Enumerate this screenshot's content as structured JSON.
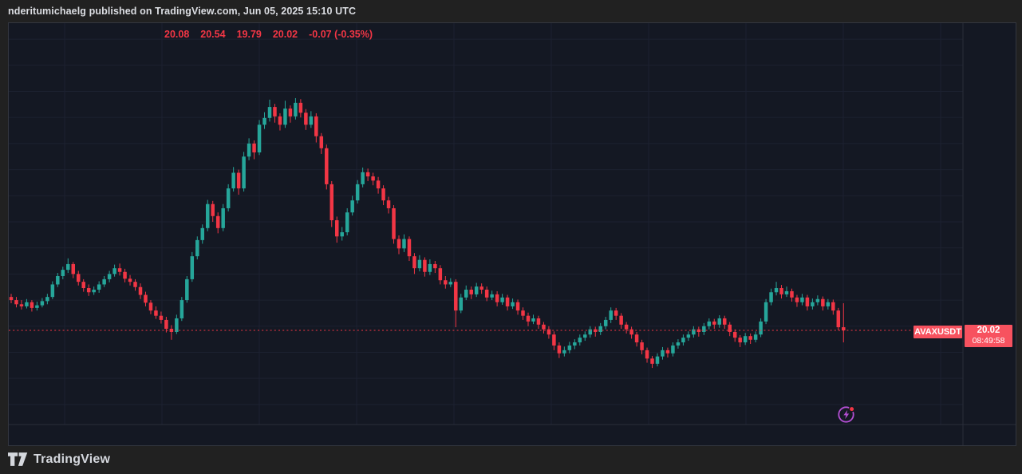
{
  "header": {
    "published_line": "nderitumichaelg published on TradingView.com, Jun 05, 2025 15:10 UTC"
  },
  "legend": {
    "open": "20.08",
    "high": "20.54",
    "low": "19.79",
    "close": "20.02",
    "change": "-0.07 (-0.35%)"
  },
  "price_label": {
    "symbol": "AVAXUSDT",
    "price": "20.02",
    "countdown": "08:49:58"
  },
  "footer": {
    "brand": "TradingView"
  },
  "icons": {
    "flash_icon": "circled-lightning-with-red-notification-dot",
    "tradingview_logo": "tv-mark"
  },
  "colors": {
    "background": "#212121",
    "panel_bg": "#141823",
    "grid": "#1c2130",
    "separator": "#2a2e39",
    "up": "#26a69a",
    "down": "#f23645",
    "label_bg": "#f7525f",
    "legend_text": "#f23645",
    "text_primary": "#dcdee3",
    "flash_purple": "#b44fd4"
  },
  "chart_data": {
    "type": "candlestick",
    "symbol": "AVAXUSDT",
    "last_price": 20.02,
    "change": -0.07,
    "change_pct": -0.35,
    "ohlc_last": {
      "open": 20.08,
      "high": 20.54,
      "low": 19.79,
      "close": 20.02
    },
    "countdown_to_bar_close": "08:49:58",
    "y_axis": {
      "min": 18.4,
      "max": 26.1,
      "gridline_step": 0.5,
      "labels_hidden": true
    },
    "x_axis": {
      "labels_hidden": true
    },
    "up_color": "#26a69a",
    "down_color": "#f23645",
    "price_line_color": "#f23645",
    "grid_color": "#1c2130",
    "candles": [
      [
        20.66,
        20.72,
        20.54,
        20.6
      ],
      [
        20.6,
        20.66,
        20.46,
        20.52
      ],
      [
        20.52,
        20.6,
        20.42,
        20.48
      ],
      [
        20.48,
        20.62,
        20.44,
        20.56
      ],
      [
        20.56,
        20.6,
        20.38,
        20.45
      ],
      [
        20.45,
        20.57,
        20.4,
        20.5
      ],
      [
        20.5,
        20.64,
        20.46,
        20.58
      ],
      [
        20.58,
        20.72,
        20.52,
        20.66
      ],
      [
        20.66,
        20.96,
        20.62,
        20.9
      ],
      [
        20.9,
        21.12,
        20.85,
        21.06
      ],
      [
        21.06,
        21.24,
        21.0,
        21.18
      ],
      [
        21.18,
        21.4,
        21.12,
        21.29
      ],
      [
        21.29,
        21.33,
        21.02,
        21.1
      ],
      [
        21.1,
        21.16,
        20.88,
        20.95
      ],
      [
        20.95,
        21.0,
        20.76,
        20.83
      ],
      [
        20.83,
        20.9,
        20.68,
        20.75
      ],
      [
        20.75,
        20.86,
        20.7,
        20.8
      ],
      [
        20.8,
        20.96,
        20.74,
        20.9
      ],
      [
        20.9,
        21.06,
        20.85,
        21.0
      ],
      [
        21.0,
        21.16,
        20.94,
        21.1
      ],
      [
        21.1,
        21.28,
        21.05,
        21.21
      ],
      [
        21.21,
        21.3,
        21.07,
        21.14
      ],
      [
        21.14,
        21.2,
        20.94,
        21.01
      ],
      [
        21.01,
        21.08,
        20.88,
        20.95
      ],
      [
        20.95,
        21.0,
        20.78,
        20.85
      ],
      [
        20.85,
        20.92,
        20.62,
        20.7
      ],
      [
        20.7,
        20.76,
        20.48,
        20.55
      ],
      [
        20.55,
        20.6,
        20.33,
        20.4
      ],
      [
        20.4,
        20.48,
        20.24,
        20.3
      ],
      [
        20.3,
        20.38,
        20.15,
        20.22
      ],
      [
        20.22,
        20.28,
        19.98,
        20.05
      ],
      [
        20.05,
        20.12,
        19.84,
        19.99
      ],
      [
        19.99,
        20.32,
        19.95,
        20.25
      ],
      [
        20.25,
        20.66,
        20.2,
        20.6
      ],
      [
        20.6,
        21.06,
        20.55,
        21.0
      ],
      [
        21.0,
        21.52,
        20.95,
        21.44
      ],
      [
        21.44,
        21.82,
        21.38,
        21.75
      ],
      [
        21.75,
        22.05,
        21.68,
        21.98
      ],
      [
        21.98,
        22.52,
        21.92,
        22.44
      ],
      [
        22.44,
        22.5,
        22.1,
        22.21
      ],
      [
        22.21,
        22.28,
        21.88,
        21.98
      ],
      [
        21.98,
        22.44,
        21.92,
        22.36
      ],
      [
        22.36,
        22.82,
        22.3,
        22.74
      ],
      [
        22.74,
        23.15,
        22.68,
        23.04
      ],
      [
        23.04,
        23.1,
        22.62,
        22.74
      ],
      [
        22.74,
        23.44,
        22.68,
        23.35
      ],
      [
        23.35,
        23.7,
        23.28,
        23.6
      ],
      [
        23.6,
        23.66,
        23.3,
        23.43
      ],
      [
        23.43,
        24.05,
        23.38,
        23.96
      ],
      [
        23.96,
        24.2,
        23.88,
        24.09
      ],
      [
        24.09,
        24.44,
        24.02,
        24.3
      ],
      [
        24.3,
        24.36,
        24.0,
        24.12
      ],
      [
        24.12,
        24.18,
        23.85,
        23.96
      ],
      [
        23.96,
        24.42,
        23.9,
        24.27
      ],
      [
        24.27,
        24.33,
        24.0,
        24.12
      ],
      [
        24.12,
        24.47,
        24.06,
        24.38
      ],
      [
        24.38,
        24.45,
        24.1,
        24.19
      ],
      [
        24.19,
        24.26,
        23.86,
        23.96
      ],
      [
        23.96,
        24.22,
        23.9,
        24.12
      ],
      [
        24.12,
        24.18,
        23.62,
        23.74
      ],
      [
        23.74,
        23.8,
        23.4,
        23.51
      ],
      [
        23.51,
        23.58,
        22.72,
        22.82
      ],
      [
        22.82,
        22.88,
        22.0,
        22.13
      ],
      [
        22.13,
        22.2,
        21.7,
        21.82
      ],
      [
        21.82,
        22.0,
        21.74,
        21.9
      ],
      [
        21.9,
        22.36,
        21.84,
        22.28
      ],
      [
        22.28,
        22.6,
        22.22,
        22.51
      ],
      [
        22.51,
        22.9,
        22.45,
        22.82
      ],
      [
        22.82,
        23.14,
        22.76,
        23.05
      ],
      [
        23.05,
        23.12,
        22.88,
        22.97
      ],
      [
        22.97,
        23.04,
        22.8,
        22.89
      ],
      [
        22.89,
        22.96,
        22.64,
        22.74
      ],
      [
        22.74,
        22.8,
        22.42,
        22.51
      ],
      [
        22.51,
        22.58,
        22.26,
        22.36
      ],
      [
        22.36,
        22.42,
        21.68,
        21.77
      ],
      [
        21.77,
        21.84,
        21.48,
        21.59
      ],
      [
        21.59,
        21.86,
        21.52,
        21.77
      ],
      [
        21.77,
        21.82,
        21.35,
        21.44
      ],
      [
        21.44,
        21.5,
        21.1,
        21.21
      ],
      [
        21.21,
        21.46,
        21.15,
        21.37
      ],
      [
        21.37,
        21.42,
        21.05,
        21.14
      ],
      [
        21.14,
        21.38,
        21.08,
        21.29
      ],
      [
        21.29,
        21.35,
        21.12,
        21.21
      ],
      [
        21.21,
        21.27,
        20.9,
        20.98
      ],
      [
        20.98,
        21.06,
        20.82,
        20.9
      ],
      [
        20.9,
        21.02,
        20.85,
        20.95
      ],
      [
        20.95,
        21.0,
        20.08,
        20.4
      ],
      [
        20.4,
        20.72,
        20.35,
        20.65
      ],
      [
        20.65,
        20.88,
        20.6,
        20.8
      ],
      [
        20.8,
        20.86,
        20.62,
        20.71
      ],
      [
        20.71,
        20.93,
        20.66,
        20.86
      ],
      [
        20.86,
        20.92,
        20.72,
        20.8
      ],
      [
        20.8,
        20.86,
        20.58,
        20.65
      ],
      [
        20.65,
        20.78,
        20.6,
        20.71
      ],
      [
        20.71,
        20.77,
        20.48,
        20.56
      ],
      [
        20.56,
        20.72,
        20.51,
        20.65
      ],
      [
        20.65,
        20.7,
        20.4,
        20.48
      ],
      [
        20.48,
        20.63,
        20.43,
        20.56
      ],
      [
        20.56,
        20.61,
        20.32,
        20.4
      ],
      [
        20.4,
        20.46,
        20.22,
        20.3
      ],
      [
        20.3,
        20.36,
        20.1,
        20.19
      ],
      [
        20.19,
        20.32,
        20.14,
        20.25
      ],
      [
        20.25,
        20.3,
        20.05,
        20.13
      ],
      [
        20.13,
        20.18,
        19.96,
        20.04
      ],
      [
        20.04,
        20.1,
        19.86,
        19.94
      ],
      [
        19.94,
        20.0,
        19.64,
        19.73
      ],
      [
        19.73,
        19.79,
        19.49,
        19.58
      ],
      [
        19.58,
        19.71,
        19.52,
        19.64
      ],
      [
        19.64,
        19.8,
        19.58,
        19.73
      ],
      [
        19.73,
        19.85,
        19.66,
        19.79
      ],
      [
        19.79,
        19.94,
        19.73,
        19.88
      ],
      [
        19.88,
        20.0,
        19.82,
        19.94
      ],
      [
        19.94,
        20.1,
        19.88,
        20.04
      ],
      [
        20.04,
        20.09,
        19.9,
        19.99
      ],
      [
        19.99,
        20.16,
        19.93,
        20.1
      ],
      [
        20.1,
        20.28,
        20.04,
        20.22
      ],
      [
        20.22,
        20.46,
        20.16,
        20.4
      ],
      [
        20.4,
        20.45,
        20.22,
        20.3
      ],
      [
        20.3,
        20.35,
        20.05,
        20.13
      ],
      [
        20.13,
        20.18,
        19.96,
        20.04
      ],
      [
        20.04,
        20.09,
        19.86,
        19.94
      ],
      [
        19.94,
        19.99,
        19.71,
        19.79
      ],
      [
        19.79,
        19.84,
        19.56,
        19.64
      ],
      [
        19.64,
        19.69,
        19.4,
        19.48
      ],
      [
        19.48,
        19.53,
        19.3,
        19.38
      ],
      [
        19.38,
        19.58,
        19.33,
        19.52
      ],
      [
        19.52,
        19.7,
        19.46,
        19.64
      ],
      [
        19.64,
        19.69,
        19.5,
        19.58
      ],
      [
        19.58,
        19.79,
        19.52,
        19.73
      ],
      [
        19.73,
        19.85,
        19.67,
        19.79
      ],
      [
        19.79,
        19.94,
        19.73,
        19.88
      ],
      [
        19.88,
        20.0,
        19.82,
        19.94
      ],
      [
        19.94,
        20.1,
        19.88,
        20.04
      ],
      [
        20.04,
        20.09,
        19.9,
        19.99
      ],
      [
        19.99,
        20.16,
        19.93,
        20.1
      ],
      [
        20.1,
        20.25,
        20.04,
        20.19
      ],
      [
        20.19,
        20.24,
        20.05,
        20.13
      ],
      [
        20.13,
        20.31,
        20.07,
        20.25
      ],
      [
        20.25,
        20.3,
        20.05,
        20.13
      ],
      [
        20.13,
        20.18,
        19.91,
        19.99
      ],
      [
        19.99,
        20.04,
        19.8,
        19.88
      ],
      [
        19.88,
        19.93,
        19.7,
        19.79
      ],
      [
        19.79,
        19.97,
        19.74,
        19.91
      ],
      [
        19.91,
        19.96,
        19.76,
        19.84
      ],
      [
        19.84,
        20.0,
        19.79,
        19.94
      ],
      [
        19.94,
        20.25,
        19.89,
        20.19
      ],
      [
        20.19,
        20.62,
        20.14,
        20.56
      ],
      [
        20.56,
        20.82,
        20.5,
        20.75
      ],
      [
        20.75,
        20.95,
        20.69,
        20.83
      ],
      [
        20.83,
        20.89,
        20.63,
        20.71
      ],
      [
        20.71,
        20.86,
        20.66,
        20.77
      ],
      [
        20.77,
        20.82,
        20.57,
        20.65
      ],
      [
        20.65,
        20.7,
        20.47,
        20.56
      ],
      [
        20.56,
        20.72,
        20.5,
        20.65
      ],
      [
        20.65,
        20.7,
        20.4,
        20.48
      ],
      [
        20.48,
        20.63,
        20.42,
        20.56
      ],
      [
        20.56,
        20.69,
        20.5,
        20.62
      ],
      [
        20.62,
        20.67,
        20.4,
        20.48
      ],
      [
        20.48,
        20.62,
        20.42,
        20.56
      ],
      [
        20.56,
        20.61,
        20.32,
        20.4
      ],
      [
        20.4,
        20.45,
        20.02,
        20.08
      ],
      [
        20.08,
        20.54,
        19.79,
        20.02
      ]
    ]
  }
}
